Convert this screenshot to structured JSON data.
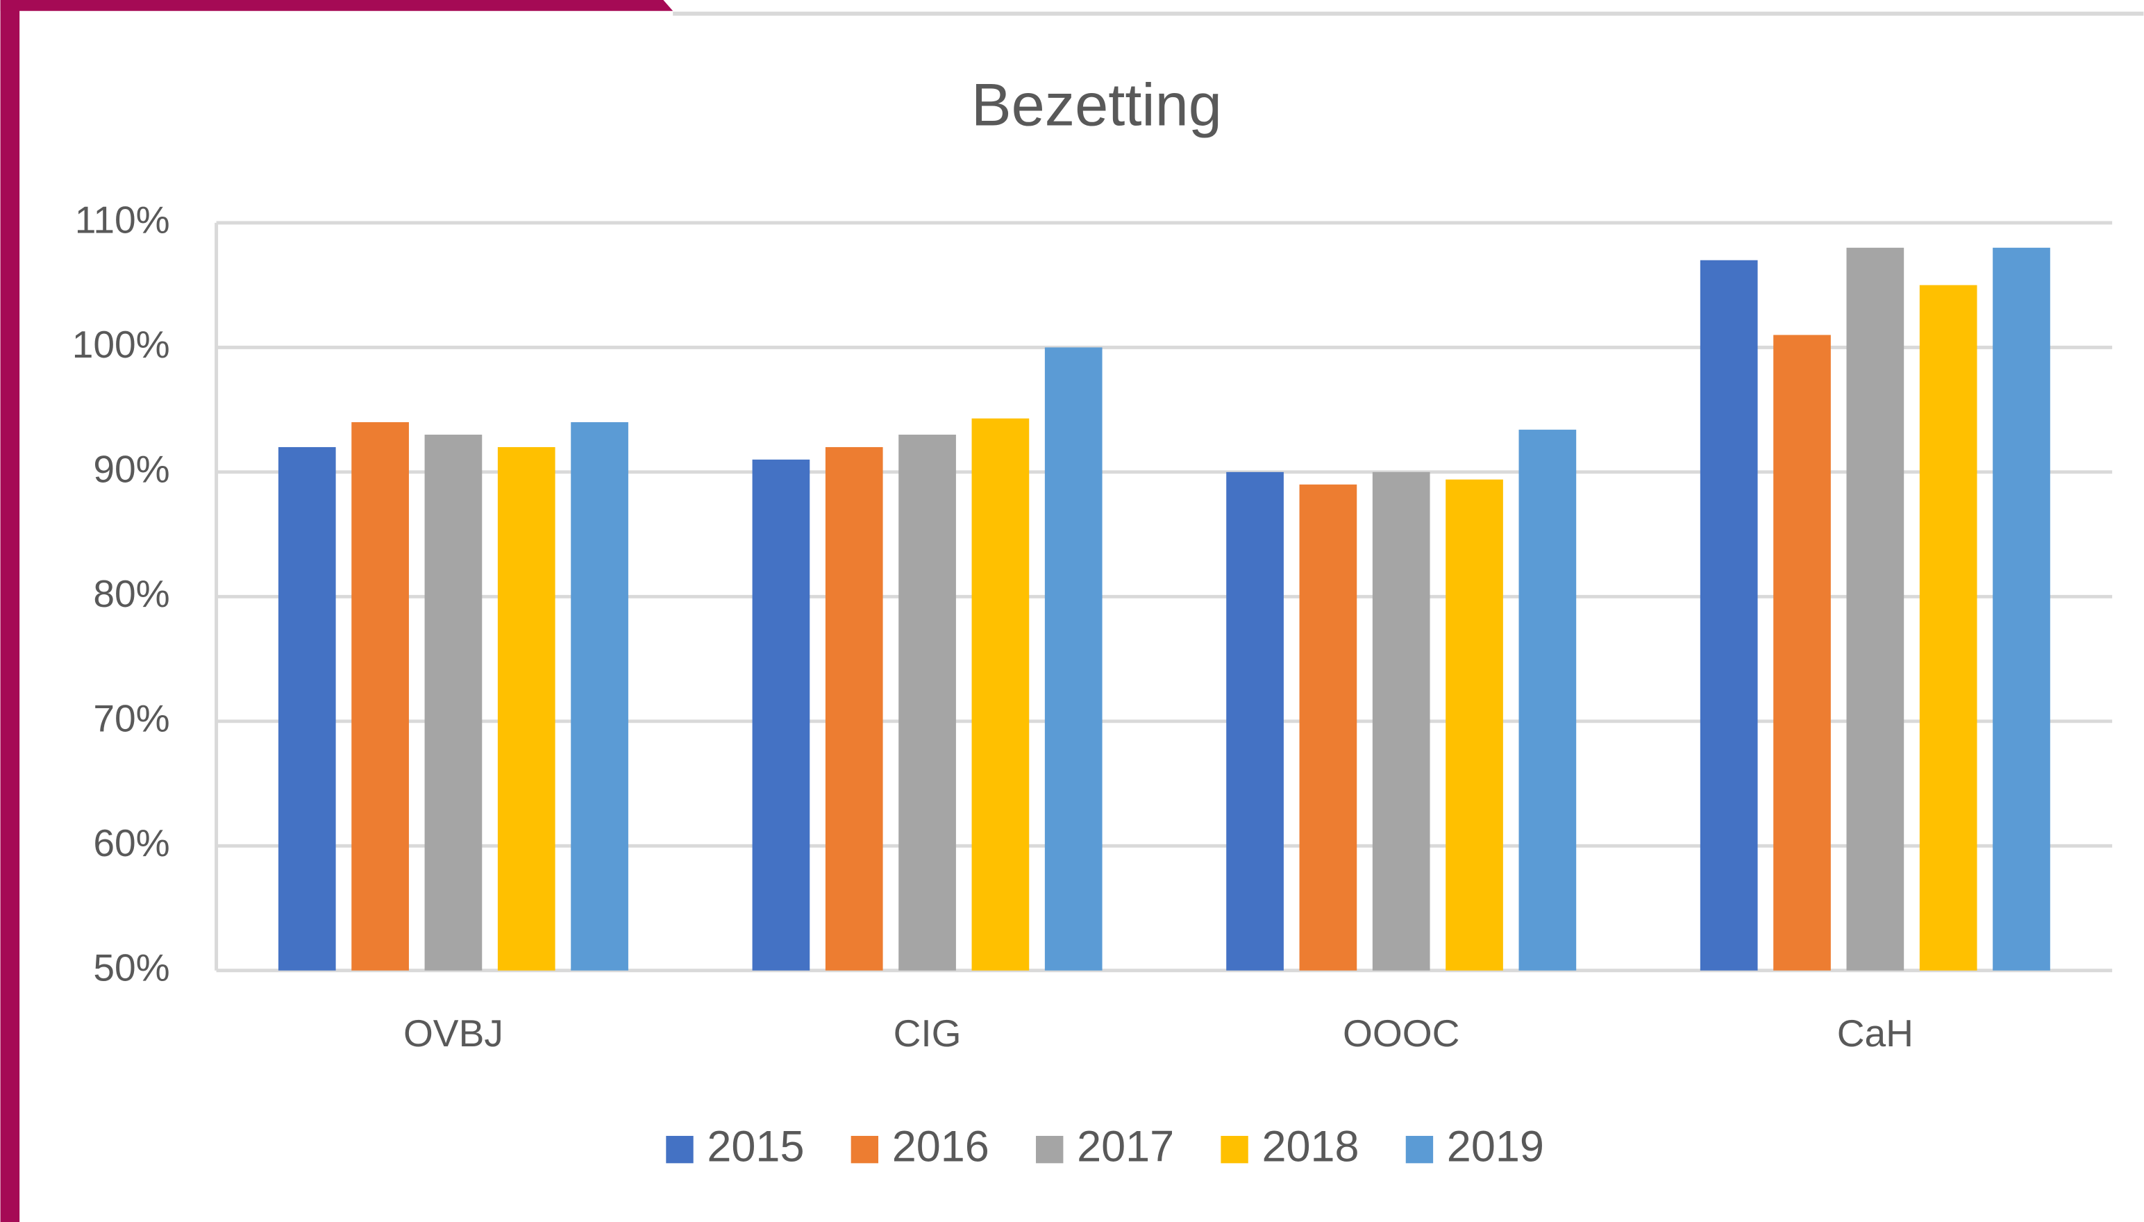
{
  "chart_data": {
    "type": "bar",
    "title": "Bezetting",
    "categories": [
      "OVBJ",
      "CIG",
      "OOOC",
      "CaH"
    ],
    "series": [
      {
        "name": "2015",
        "color": "#4472c4",
        "values": [
          92,
          91,
          90,
          107
        ]
      },
      {
        "name": "2016",
        "color": "#ed7d31",
        "values": [
          94,
          92,
          89,
          101
        ]
      },
      {
        "name": "2017",
        "color": "#a5a5a5",
        "values": [
          93,
          93,
          90,
          108
        ]
      },
      {
        "name": "2018",
        "color": "#ffc000",
        "values": [
          92,
          94.3,
          89.4,
          105
        ]
      },
      {
        "name": "2019",
        "color": "#5b9bd5",
        "values": [
          94,
          100,
          93.4,
          108
        ]
      }
    ],
    "ylim": [
      50,
      110
    ],
    "yticks": [
      {
        "value": 50,
        "label": "50%"
      },
      {
        "value": 60,
        "label": "60%"
      },
      {
        "value": 70,
        "label": "70%"
      },
      {
        "value": 80,
        "label": "80%"
      },
      {
        "value": 90,
        "label": "90%"
      },
      {
        "value": 100,
        "label": "100%"
      },
      {
        "value": 110,
        "label": "110%"
      }
    ],
    "grid": true,
    "legend": "bottom"
  }
}
